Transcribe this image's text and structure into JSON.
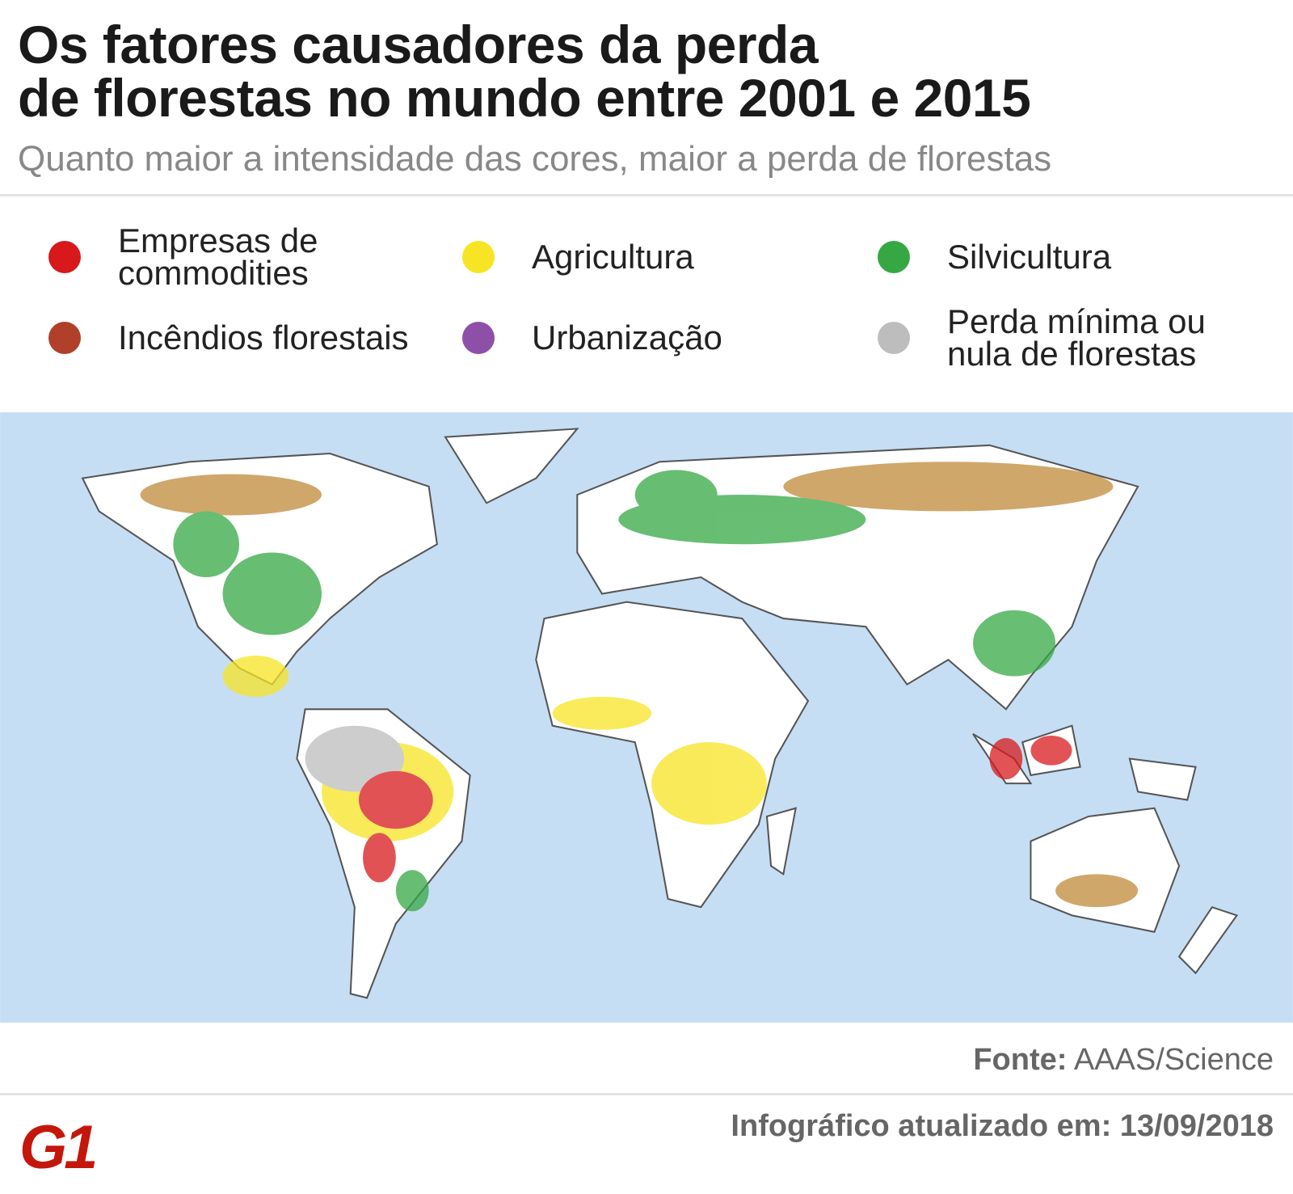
{
  "title": [
    "Os fatores causadores da perda",
    "de florestas no mundo entre 2001 e 2015"
  ],
  "subtitle": "Quanto maior a intensidade das cores, maior a perda de florestas",
  "legend": [
    {
      "label": "Empresas de commodities",
      "color": "#d7191c"
    },
    {
      "label": "Agricultura",
      "color": "#f7e424"
    },
    {
      "label": "Silvicultura",
      "color": "#35a844"
    },
    {
      "label": "Incêndios florestais",
      "color": "#b0402a"
    },
    {
      "label": "Urbanização",
      "color": "#8e4fa8"
    },
    {
      "label": "Perda mínima ou nula de florestas",
      "color": "#bdbdbd"
    }
  ],
  "source": {
    "label": "Fonte:",
    "value": "AAAS/Science"
  },
  "footer": "Infográfico atualizado em: 13/09/2018",
  "logo": "G1"
}
